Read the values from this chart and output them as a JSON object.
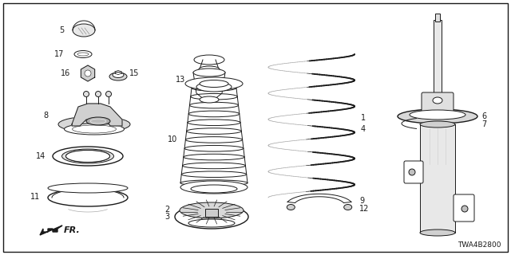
{
  "bg_color": "#ffffff",
  "line_color": "#1a1a1a",
  "diagram_code": "TWA4B2800",
  "figsize": [
    6.4,
    3.2
  ],
  "dpi": 100
}
